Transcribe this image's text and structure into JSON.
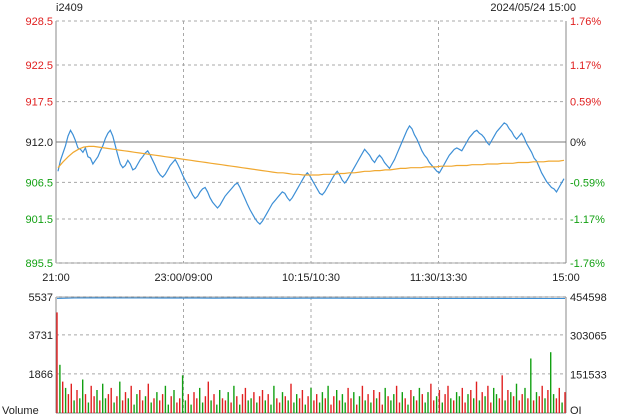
{
  "header": {
    "symbol": "i2409",
    "datetime": "2024/05/24 15:00"
  },
  "colors": {
    "price_line": "#3d8fd6",
    "avg_line": "#f0a830",
    "up": "#e02020",
    "down": "#12a012",
    "flat": "#222222",
    "grid": "#a8a8a8",
    "oi_line": "#3d8fd6"
  },
  "chart_data": [
    {
      "type": "line",
      "role": "price",
      "reference_price": 912.0,
      "y_ticks": [
        "928.5",
        "922.5",
        "917.5",
        "912.0",
        "906.5",
        "901.5",
        "895.5"
      ],
      "y_tick_values": [
        928.5,
        922.5,
        917.5,
        912.0,
        906.5,
        901.5,
        895.5
      ],
      "pct_ticks": [
        "1.76%",
        "1.17%",
        "0.59%",
        "0%",
        "-0.59%",
        "-1.17%",
        "-1.76%"
      ],
      "x_ticks": [
        "21:00",
        "23:00/09:00",
        "10:15/10:30",
        "11:30/13:30",
        "15:00"
      ],
      "ylim": [
        895.5,
        928.5
      ],
      "grid": true,
      "series": [
        {
          "values": [
            908.0,
            909.5,
            910.5,
            911.5,
            912.8,
            913.6,
            913.0,
            912.2,
            911.2,
            911.0,
            910.6,
            911.2,
            910.0,
            909.8,
            909.0,
            909.5,
            910.0,
            910.8,
            911.5,
            912.5,
            913.2,
            913.6,
            912.8,
            911.5,
            910.2,
            909.0,
            908.5,
            908.8,
            909.5,
            909.0,
            908.2,
            908.4,
            909.0,
            909.6,
            910.0,
            910.5,
            910.8,
            910.2,
            909.5,
            908.8,
            908.0,
            907.5,
            907.2,
            907.6,
            908.2,
            908.8,
            909.2,
            909.6,
            909.0,
            908.3,
            907.5,
            906.8,
            906.2,
            905.5,
            904.8,
            904.3,
            904.6,
            905.2,
            905.6,
            905.8,
            905.2,
            904.4,
            903.8,
            903.4,
            903.0,
            903.4,
            904.0,
            904.6,
            905.0,
            905.4,
            905.8,
            906.2,
            906.4,
            905.8,
            905.0,
            904.3,
            903.5,
            902.8,
            902.2,
            901.6,
            901.1,
            900.8,
            901.2,
            901.8,
            902.4,
            903.0,
            903.6,
            904.0,
            904.4,
            904.8,
            905.2,
            905.0,
            904.4,
            904.0,
            904.4,
            905.0,
            905.6,
            906.2,
            906.8,
            907.4,
            907.8,
            907.4,
            906.8,
            906.2,
            905.6,
            905.0,
            904.8,
            905.2,
            905.8,
            906.4,
            907.0,
            907.6,
            908.0,
            907.5,
            906.8,
            906.4,
            906.8,
            907.4,
            908.0,
            908.6,
            909.2,
            909.8,
            910.4,
            911.0,
            910.6,
            910.2,
            909.6,
            909.2,
            909.8,
            910.2,
            909.8,
            909.2,
            908.8,
            908.4,
            909.0,
            909.6,
            910.4,
            911.2,
            912.0,
            912.8,
            913.6,
            914.2,
            913.8,
            913.0,
            912.4,
            911.6,
            910.8,
            910.2,
            909.8,
            909.2,
            908.8,
            908.4,
            908.0,
            907.8,
            908.4,
            909.0,
            909.6,
            910.2,
            910.6,
            911.0,
            911.2,
            911.0,
            910.8,
            911.4,
            912.0,
            912.6,
            913.0,
            913.4,
            913.6,
            913.2,
            913.0,
            912.6,
            912.0,
            911.6,
            912.2,
            912.8,
            913.4,
            913.8,
            914.2,
            914.6,
            914.4,
            913.8,
            913.4,
            912.8,
            912.4,
            912.8,
            913.2,
            912.6,
            911.8,
            911.2,
            910.6,
            909.8,
            909.4,
            908.6,
            907.8,
            907.2,
            906.6,
            906.2,
            905.8,
            905.6,
            905.2,
            905.8,
            906.4,
            907.0
          ]
        },
        {
          "values": [
            908.5,
            909.3,
            910.0,
            910.6,
            911.0,
            911.3,
            911.4,
            911.4,
            911.3,
            911.2,
            911.1,
            911.0,
            910.9,
            910.8,
            910.7,
            910.6,
            910.5,
            910.4,
            910.3,
            910.2,
            910.1,
            910.0,
            909.9,
            909.8,
            909.7,
            909.6,
            909.5,
            909.4,
            909.3,
            909.2,
            909.1,
            909.0,
            908.9,
            908.8,
            908.7,
            908.6,
            908.5,
            908.4,
            908.3,
            908.2,
            908.1,
            908.0,
            907.9,
            907.8,
            907.8,
            907.7,
            907.6,
            907.6,
            907.5,
            907.5,
            907.5,
            907.5,
            907.6,
            907.6,
            907.6,
            907.7,
            907.7,
            907.8,
            907.8,
            907.9,
            908.0,
            908.0,
            908.1,
            908.1,
            908.2,
            908.2,
            908.3,
            908.4,
            908.4,
            908.5,
            908.5,
            908.5,
            908.6,
            908.6,
            908.6,
            908.7,
            908.7,
            908.7,
            908.8,
            908.8,
            908.8,
            908.9,
            908.9,
            908.9,
            909.0,
            909.0,
            909.0,
            909.1,
            909.1,
            909.1,
            909.2,
            909.2,
            909.2,
            909.3,
            909.3,
            909.3,
            909.4,
            909.4,
            909.4,
            909.5
          ]
        }
      ]
    },
    {
      "type": "bar",
      "role": "volume",
      "y_ticks": [
        "5537",
        "3731",
        "1866"
      ],
      "y_tick_values": [
        5537,
        3731,
        1866
      ],
      "ylim": [
        0,
        5537
      ],
      "bottom_left_label": "Volume",
      "series": [
        {
          "values": [
            4800,
            2300,
            1500,
            1200,
            900,
            1400,
            600,
            1100,
            700,
            1600,
            900,
            500,
            1300,
            800,
            1100,
            600,
            1400,
            700,
            900,
            1200,
            500,
            800,
            1500,
            600,
            1000,
            700,
            1300,
            400,
            900,
            1100,
            600,
            800,
            1400,
            500,
            700,
            1000,
            600,
            900,
            1300,
            400,
            800,
            1100,
            500,
            700,
            1800,
            600,
            900,
            400,
            1000,
            700,
            1200,
            500,
            800,
            1500,
            600,
            900,
            400,
            1100,
            700,
            600,
            1000,
            500,
            1300,
            800,
            400,
            900,
            1200,
            600,
            700,
            1000,
            500,
            800,
            1100,
            600,
            900,
            400,
            1300,
            700,
            500,
            1000,
            800,
            600,
            1400,
            500,
            900,
            700,
            1100,
            400,
            800,
            1200,
            600,
            900,
            500,
            1000,
            700,
            1300,
            400,
            800,
            1100,
            600,
            900,
            500,
            1200,
            700,
            1000,
            400,
            800,
            1300,
            600,
            900,
            500,
            1100,
            700,
            1000,
            400,
            1200,
            800,
            600,
            900,
            1300,
            500,
            1000,
            700,
            400,
            1100,
            800,
            600,
            1200,
            900,
            500,
            1000,
            1400,
            600,
            800,
            1100,
            500,
            900,
            1300,
            700,
            600,
            1000,
            800,
            1200,
            500,
            900,
            1100,
            700,
            1500,
            600,
            1000,
            800,
            1300,
            500,
            1200,
            900,
            700,
            1800,
            600,
            1100,
            1000,
            800,
            1400,
            600,
            900,
            1200,
            700,
            2600,
            600,
            1000,
            800,
            1300,
            700,
            1100,
            2900,
            900,
            700,
            1200,
            500,
            1000
          ],
          "directions": [
            "u",
            "d",
            "u",
            "d",
            "u",
            "u",
            "d",
            "u",
            "d",
            "d",
            "u",
            "d",
            "u",
            "u",
            "d",
            "u",
            "d",
            "d",
            "u",
            "u",
            "d",
            "u",
            "d",
            "u",
            "u",
            "d",
            "u",
            "d",
            "d",
            "u",
            "u",
            "d",
            "u",
            "d",
            "u",
            "d",
            "u",
            "u",
            "d",
            "d",
            "u",
            "d",
            "u",
            "u",
            "d",
            "d",
            "u",
            "d",
            "u",
            "u",
            "d",
            "d",
            "u",
            "u",
            "d",
            "u",
            "d",
            "d",
            "u",
            "u",
            "d",
            "u",
            "d",
            "u",
            "d",
            "u",
            "u",
            "d",
            "d",
            "u",
            "d",
            "u",
            "u",
            "d",
            "u",
            "d",
            "d",
            "u",
            "u",
            "d",
            "u",
            "d",
            "u",
            "d",
            "d",
            "u",
            "u",
            "d",
            "u",
            "d",
            "u",
            "u",
            "d",
            "d",
            "u",
            "d",
            "u",
            "u",
            "d",
            "u",
            "d",
            "d",
            "u",
            "u",
            "d",
            "u",
            "d",
            "u",
            "d",
            "u",
            "d",
            "u",
            "d",
            "u",
            "u",
            "d",
            "u",
            "d",
            "d",
            "u",
            "u",
            "d",
            "u",
            "d",
            "u",
            "d",
            "u",
            "d",
            "u",
            "d",
            "d",
            "u",
            "u",
            "d",
            "u",
            "d",
            "u",
            "u",
            "d",
            "u",
            "d",
            "d",
            "u",
            "u",
            "d",
            "u",
            "d",
            "u",
            "d",
            "u",
            "d",
            "u",
            "u",
            "d",
            "d",
            "u",
            "u",
            "d",
            "u",
            "d",
            "u",
            "d",
            "u",
            "u",
            "d",
            "u",
            "d",
            "u",
            "d",
            "u",
            "u",
            "d",
            "u",
            "d",
            "d",
            "u",
            "u",
            "d",
            "u",
            "d"
          ]
        }
      ]
    },
    {
      "type": "line",
      "role": "open_interest",
      "y_ticks": [
        "454598",
        "303065",
        "151533"
      ],
      "y_tick_values": [
        454598,
        303065,
        151533
      ],
      "ylim": [
        0,
        454598
      ],
      "bottom_right_label": "OI",
      "series": [
        {
          "values": [
            449000,
            450500,
            451200,
            451000,
            450600,
            450800,
            450400,
            450200,
            450300,
            449900,
            450100,
            450000,
            449800,
            449600,
            449900,
            450000,
            449700,
            449500,
            449600,
            449400,
            449500,
            449300,
            449200,
            449100,
            449200,
            449000,
            448900,
            449000,
            448800,
            448700
          ]
        }
      ]
    }
  ]
}
